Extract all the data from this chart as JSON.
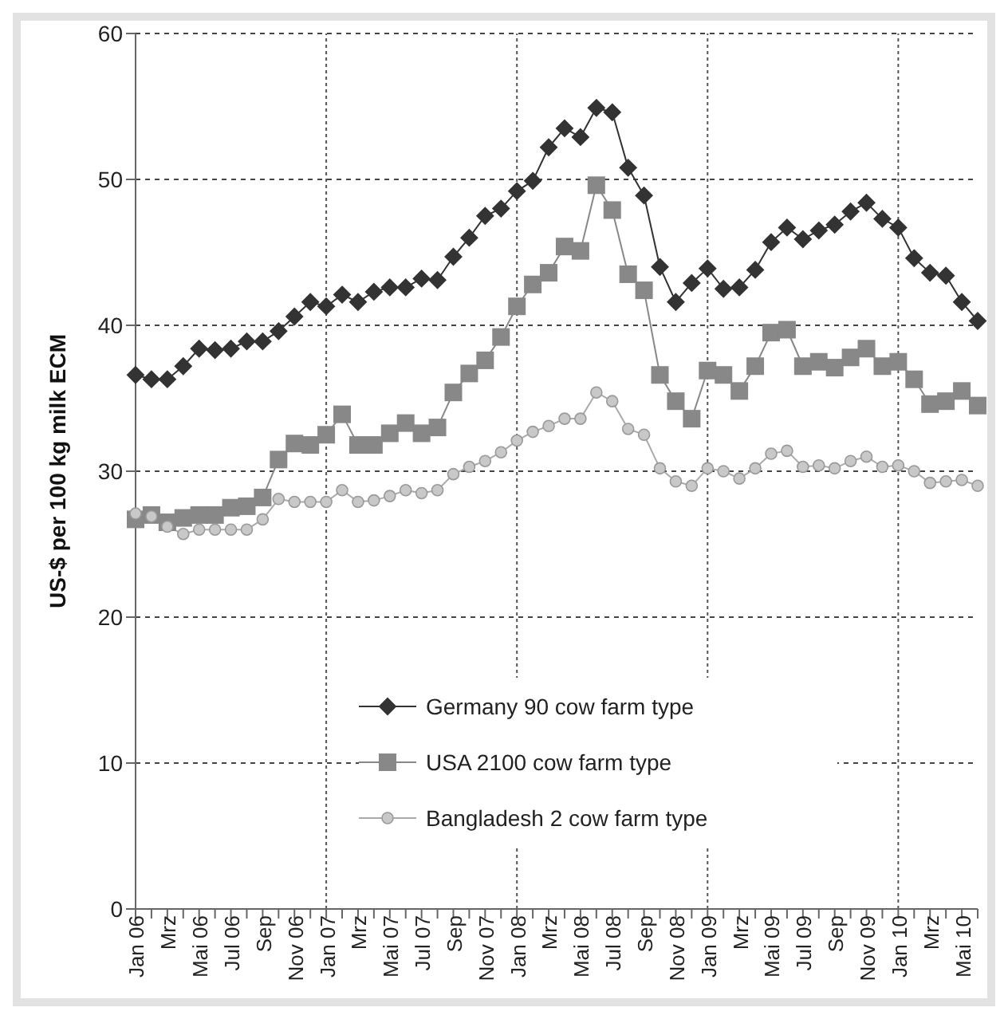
{
  "chart_data": {
    "type": "line",
    "ylabel": "US-$ per 100 kg milk ECM",
    "categories": [
      "Jan 06",
      null,
      "Mrz",
      null,
      "Mai 06",
      null,
      "Jul 06",
      null,
      "Sep",
      null,
      "Nov 06",
      null,
      "Jan 07",
      null,
      "Mrz",
      null,
      "Mai 07",
      null,
      "Jul 07",
      null,
      "Sep",
      null,
      "Nov 07",
      null,
      "Jan 08",
      null,
      "Mrz",
      null,
      "Mai 08",
      null,
      "Jul 08",
      null,
      "Sep",
      null,
      "Nov 08",
      null,
      "Jan 09",
      null,
      "Mrz",
      null,
      "Mai 09",
      null,
      "Jul 09",
      null,
      "Sep",
      null,
      "Nov 09",
      null,
      "Jan 10",
      null,
      "Mrz",
      null,
      "Mai 10",
      null
    ],
    "series": [
      {
        "name": "Germany 90 cow farm type",
        "color": "#333333",
        "marker": "diamond",
        "values": [
          36.6,
          36.3,
          36.3,
          37.2,
          38.4,
          38.3,
          38.4,
          38.9,
          38.9,
          39.6,
          40.6,
          41.6,
          41.3,
          42.1,
          41.6,
          42.3,
          42.6,
          42.6,
          43.2,
          43.1,
          44.7,
          46.0,
          47.5,
          48.0,
          49.2,
          49.9,
          52.2,
          53.5,
          52.9,
          54.9,
          54.6,
          50.8,
          48.9,
          44.0,
          41.6,
          42.9,
          43.9,
          42.5,
          42.6,
          43.8,
          45.7,
          46.7,
          45.9,
          46.5,
          46.9,
          47.8,
          48.4,
          47.3,
          46.7,
          44.6,
          43.6,
          43.4,
          41.6,
          40.3
        ]
      },
      {
        "name": "USA 2100 cow farm type",
        "color": "#888888",
        "marker": "square",
        "values": [
          26.7,
          27.0,
          26.5,
          26.8,
          27.0,
          27.0,
          27.5,
          27.6,
          28.2,
          30.8,
          31.9,
          31.8,
          32.5,
          33.9,
          31.8,
          31.8,
          32.6,
          33.3,
          32.6,
          33.0,
          35.4,
          36.7,
          37.6,
          39.2,
          41.3,
          42.8,
          43.6,
          45.4,
          45.1,
          49.6,
          47.9,
          43.5,
          42.4,
          36.6,
          34.8,
          33.6,
          36.9,
          36.6,
          35.5,
          37.2,
          39.5,
          39.7,
          37.2,
          37.5,
          37.1,
          37.8,
          38.4,
          37.2,
          37.5,
          36.3,
          34.6,
          34.8,
          35.5,
          34.5
        ]
      },
      {
        "name": "Bangladesh 2 cow farm type",
        "color": "#c8c8c8",
        "marker": "circle",
        "values": [
          27.1,
          26.9,
          26.2,
          25.7,
          26.0,
          26.0,
          26.0,
          26.0,
          26.7,
          28.1,
          27.9,
          27.9,
          27.9,
          28.7,
          27.9,
          28.0,
          28.3,
          28.7,
          28.5,
          28.7,
          29.8,
          30.3,
          30.7,
          31.3,
          32.1,
          32.7,
          33.1,
          33.6,
          33.6,
          35.4,
          34.8,
          32.9,
          32.5,
          30.2,
          29.3,
          29.0,
          30.2,
          30.0,
          29.5,
          30.2,
          31.2,
          31.4,
          30.3,
          30.4,
          30.2,
          30.7,
          31.0,
          30.3,
          30.4,
          30.0,
          29.2,
          29.3,
          29.4,
          29.0
        ]
      }
    ],
    "ylim": [
      0,
      60
    ],
    "yticks": [
      0,
      10,
      20,
      30,
      40,
      50,
      60
    ],
    "grid": "y",
    "legend": "bottom",
    "ref_lines": [
      {
        "axis": "x",
        "value": "Jan 07",
        "line_style": "dotted"
      },
      {
        "axis": "x",
        "value": "Jan 08",
        "line_style": "dotted"
      },
      {
        "axis": "x",
        "value": "Jan 09",
        "line_style": "dotted"
      },
      {
        "axis": "x",
        "value": "Jan 10",
        "line_style": "dotted"
      }
    ]
  }
}
